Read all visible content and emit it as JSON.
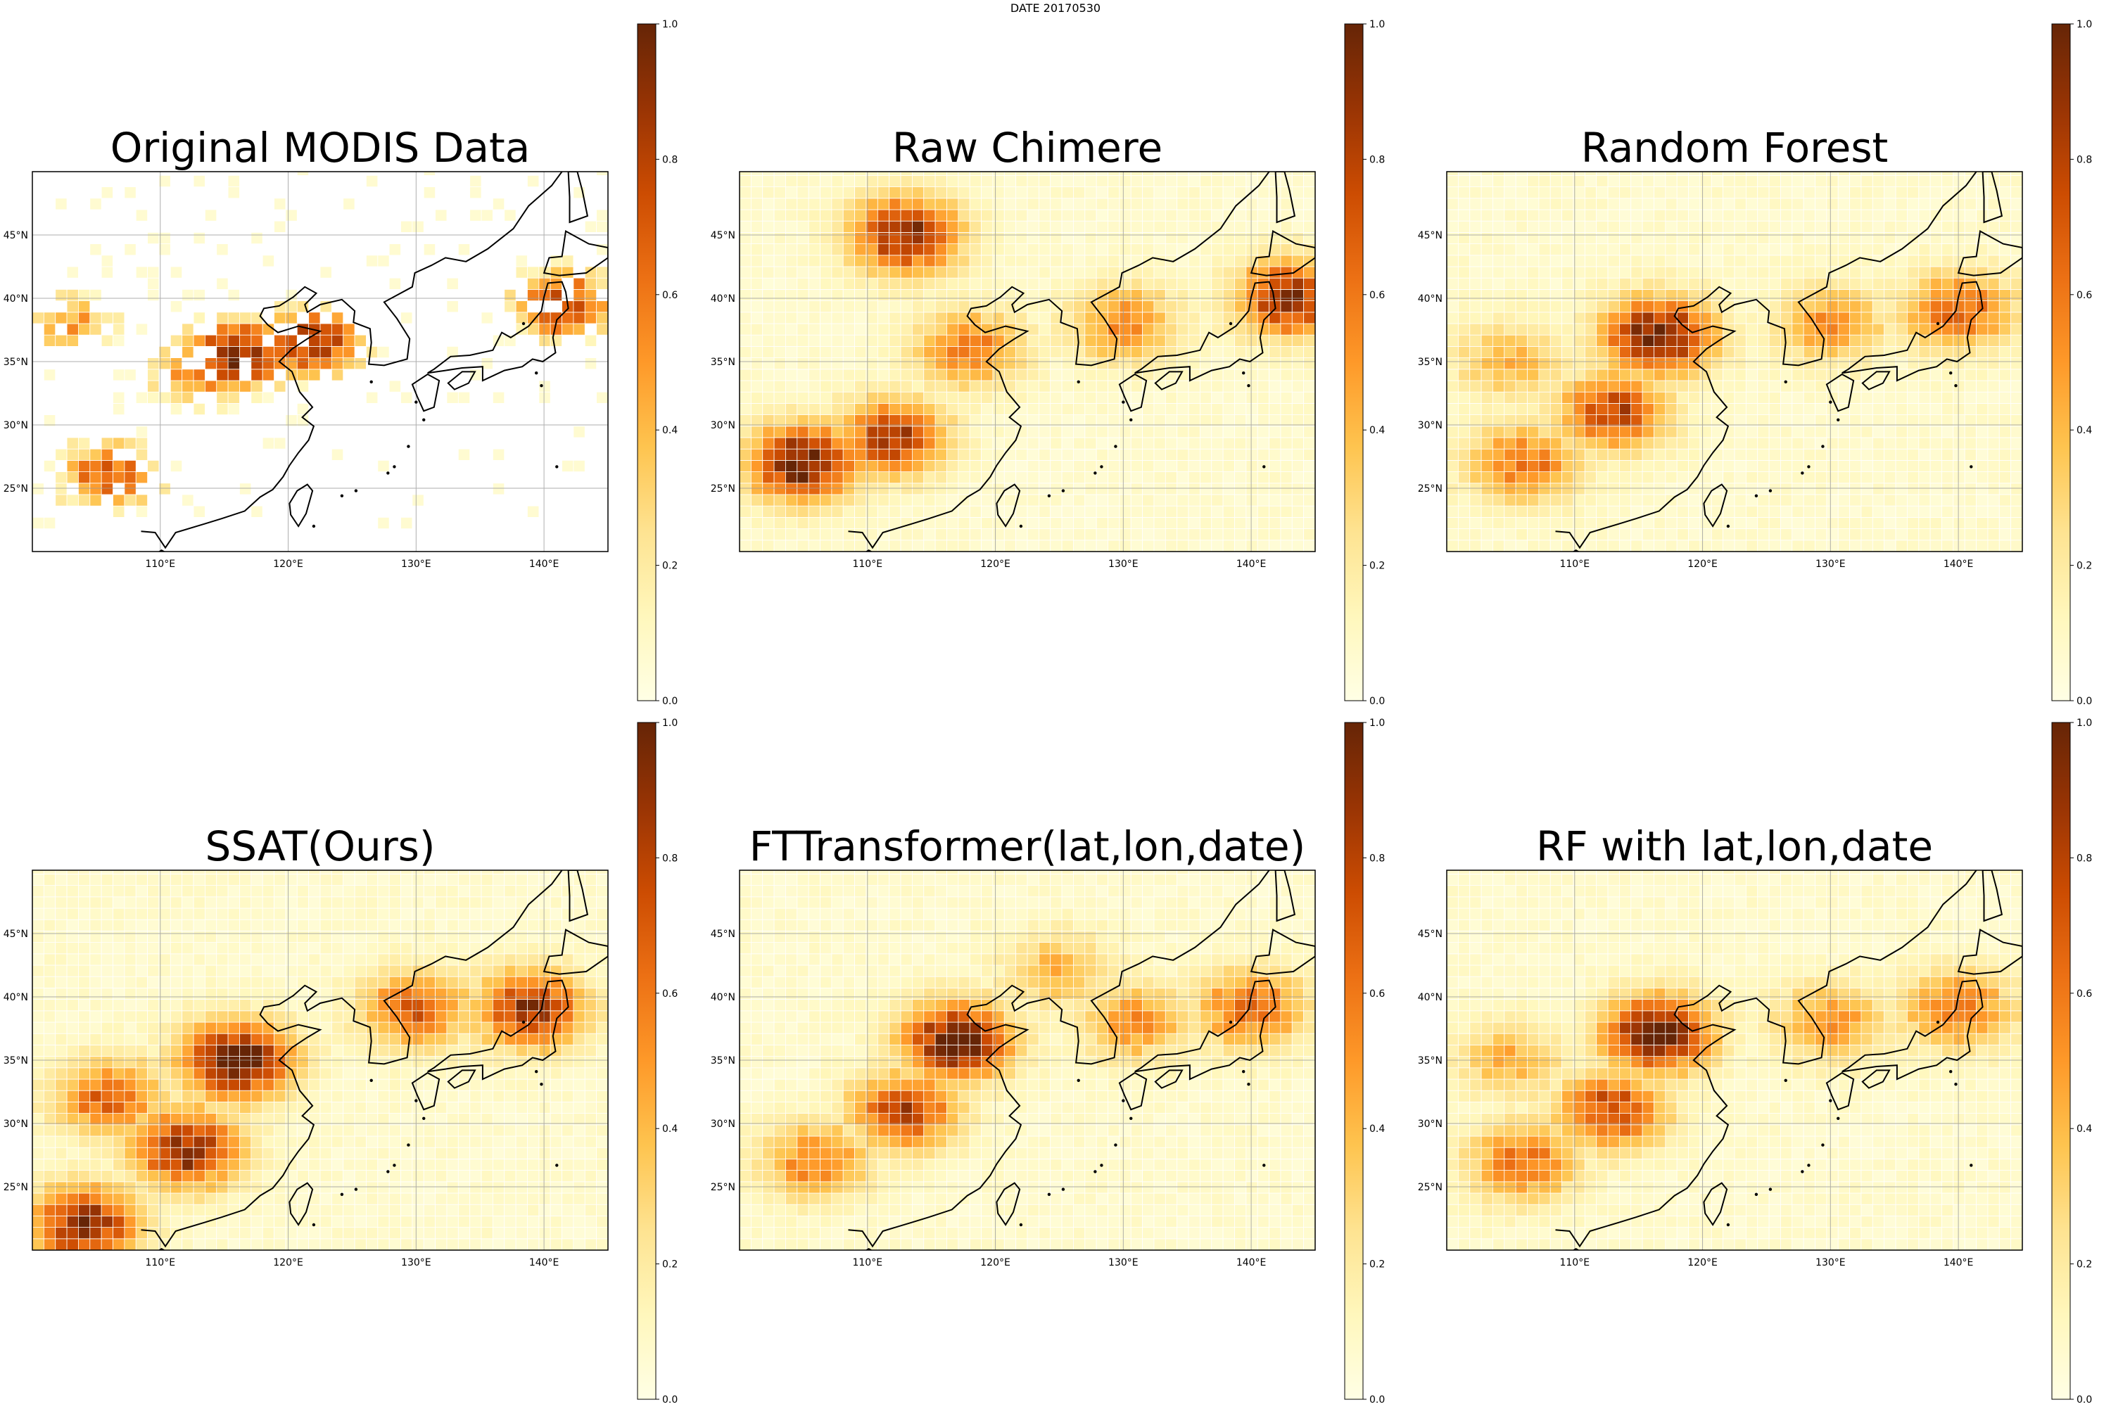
{
  "suptitle": "DATE 20170530",
  "colormap": {
    "name": "YlOrBr",
    "stops": [
      "#ffffe5",
      "#fff7bc",
      "#fee391",
      "#fec44f",
      "#fe9929",
      "#ec7014",
      "#cc4c02",
      "#993404",
      "#662506"
    ]
  },
  "colorbar": {
    "ticks": [
      "0.0",
      "0.2",
      "0.4",
      "0.6",
      "0.8",
      "1.0"
    ],
    "vmin": 0,
    "vmax": 1
  },
  "map": {
    "lon_range": [
      100,
      145
    ],
    "lat_range": [
      20,
      50
    ],
    "lon_ticks": [
      "110°E",
      "120°E",
      "130°E",
      "140°E"
    ],
    "lat_ticks": [
      "25°N",
      "30°N",
      "35°N",
      "40°N",
      "45°N"
    ]
  },
  "chart_data": [
    {
      "type": "heatmap",
      "title": "Original MODIS Data",
      "pattern": "modis",
      "hotspots": [
        {
          "lon": 116,
          "lat": 35.5,
          "value": 0.95
        },
        {
          "lon": 122,
          "lat": 36.5,
          "value": 0.85
        },
        {
          "lon": 141.5,
          "lat": 39.5,
          "value": 0.8
        },
        {
          "lon": 106,
          "lat": 26,
          "value": 0.7
        },
        {
          "lon": 113,
          "lat": 34,
          "value": 0.6
        },
        {
          "lon": 103,
          "lat": 38,
          "value": 0.5
        }
      ]
    },
    {
      "type": "heatmap",
      "title": "Raw Chimere",
      "pattern": "chimere",
      "hotspots": [
        {
          "lon": 105,
          "lat": 27,
          "value": 1.0
        },
        {
          "lon": 112,
          "lat": 29,
          "value": 0.8
        },
        {
          "lon": 113,
          "lat": 45,
          "value": 0.9
        },
        {
          "lon": 143,
          "lat": 40,
          "value": 0.85
        },
        {
          "lon": 118,
          "lat": 36,
          "value": 0.55
        },
        {
          "lon": 130,
          "lat": 38,
          "value": 0.5
        }
      ]
    },
    {
      "type": "heatmap",
      "title": "Random Forest",
      "pattern": "model",
      "hotspots": [
        {
          "lon": 116.5,
          "lat": 37,
          "value": 0.95
        },
        {
          "lon": 113,
          "lat": 31,
          "value": 0.7
        },
        {
          "lon": 106,
          "lat": 27,
          "value": 0.55
        },
        {
          "lon": 140,
          "lat": 39,
          "value": 0.6
        },
        {
          "lon": 130,
          "lat": 38,
          "value": 0.45
        },
        {
          "lon": 105,
          "lat": 35,
          "value": 0.35
        }
      ]
    },
    {
      "type": "heatmap",
      "title": "SSAT(Ours)",
      "pattern": "model",
      "hotspots": [
        {
          "lon": 116,
          "lat": 35,
          "value": 1.0
        },
        {
          "lon": 112,
          "lat": 28,
          "value": 0.85
        },
        {
          "lon": 104,
          "lat": 22,
          "value": 0.85
        },
        {
          "lon": 139,
          "lat": 39,
          "value": 0.8
        },
        {
          "lon": 130,
          "lat": 39,
          "value": 0.6
        },
        {
          "lon": 106,
          "lat": 32,
          "value": 0.6
        }
      ]
    },
    {
      "type": "heatmap",
      "title": "FTTransformer(lat,lon,date)",
      "pattern": "model",
      "hotspots": [
        {
          "lon": 117,
          "lat": 36.5,
          "value": 0.95
        },
        {
          "lon": 113,
          "lat": 31,
          "value": 0.7
        },
        {
          "lon": 106,
          "lat": 27,
          "value": 0.5
        },
        {
          "lon": 140,
          "lat": 39,
          "value": 0.6
        },
        {
          "lon": 131,
          "lat": 38,
          "value": 0.45
        },
        {
          "lon": 125,
          "lat": 42,
          "value": 0.35
        }
      ]
    },
    {
      "type": "heatmap",
      "title": "RF with lat,lon,date",
      "pattern": "model",
      "hotspots": [
        {
          "lon": 116.5,
          "lat": 37,
          "value": 0.95
        },
        {
          "lon": 113,
          "lat": 31,
          "value": 0.7
        },
        {
          "lon": 106,
          "lat": 27,
          "value": 0.55
        },
        {
          "lon": 140,
          "lat": 39,
          "value": 0.55
        },
        {
          "lon": 130,
          "lat": 38,
          "value": 0.45
        },
        {
          "lon": 105,
          "lat": 35,
          "value": 0.35
        }
      ]
    }
  ]
}
